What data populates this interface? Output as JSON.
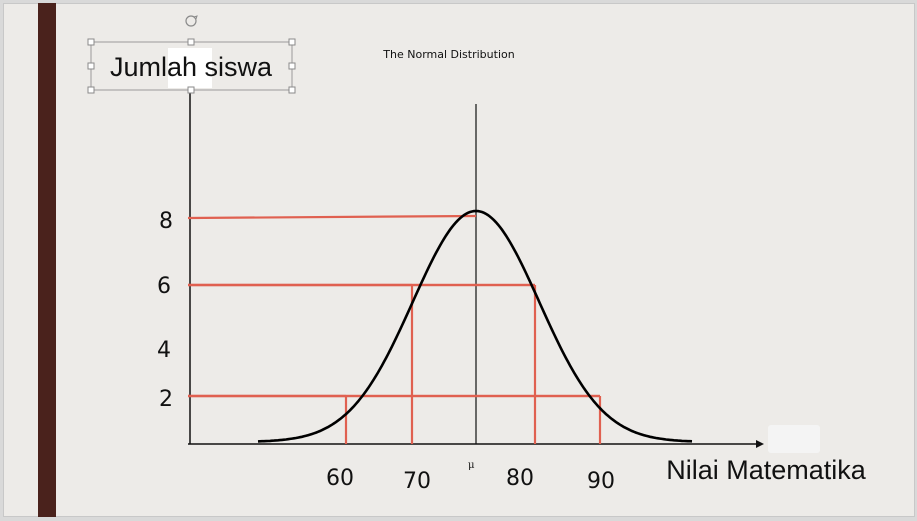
{
  "title": "The Normal Distribution",
  "ylabel": "Jumlah siswa",
  "xlabel": "Nilai Matematika",
  "mu_label": "μ",
  "colors": {
    "accent_bar": "#4a221c",
    "guide_lines": "#e06050",
    "curve": "#000000",
    "background": "#edebe8"
  },
  "chart_data": {
    "type": "line",
    "title": "The Normal Distribution",
    "xlabel": "Nilai Matematika",
    "ylabel": "Jumlah siswa",
    "y_ticks": [
      "8",
      "6",
      "4",
      "2"
    ],
    "x_ticks": [
      "60",
      "70",
      "80",
      "90"
    ],
    "guide_points": [
      {
        "x": 60,
        "y": 2
      },
      {
        "x": 70,
        "y": 6
      },
      {
        "x": 75,
        "y": 8
      },
      {
        "x": 80,
        "y": 6
      },
      {
        "x": 90,
        "y": 2
      }
    ],
    "mean_x": 75,
    "grid": false,
    "legend": "none"
  }
}
